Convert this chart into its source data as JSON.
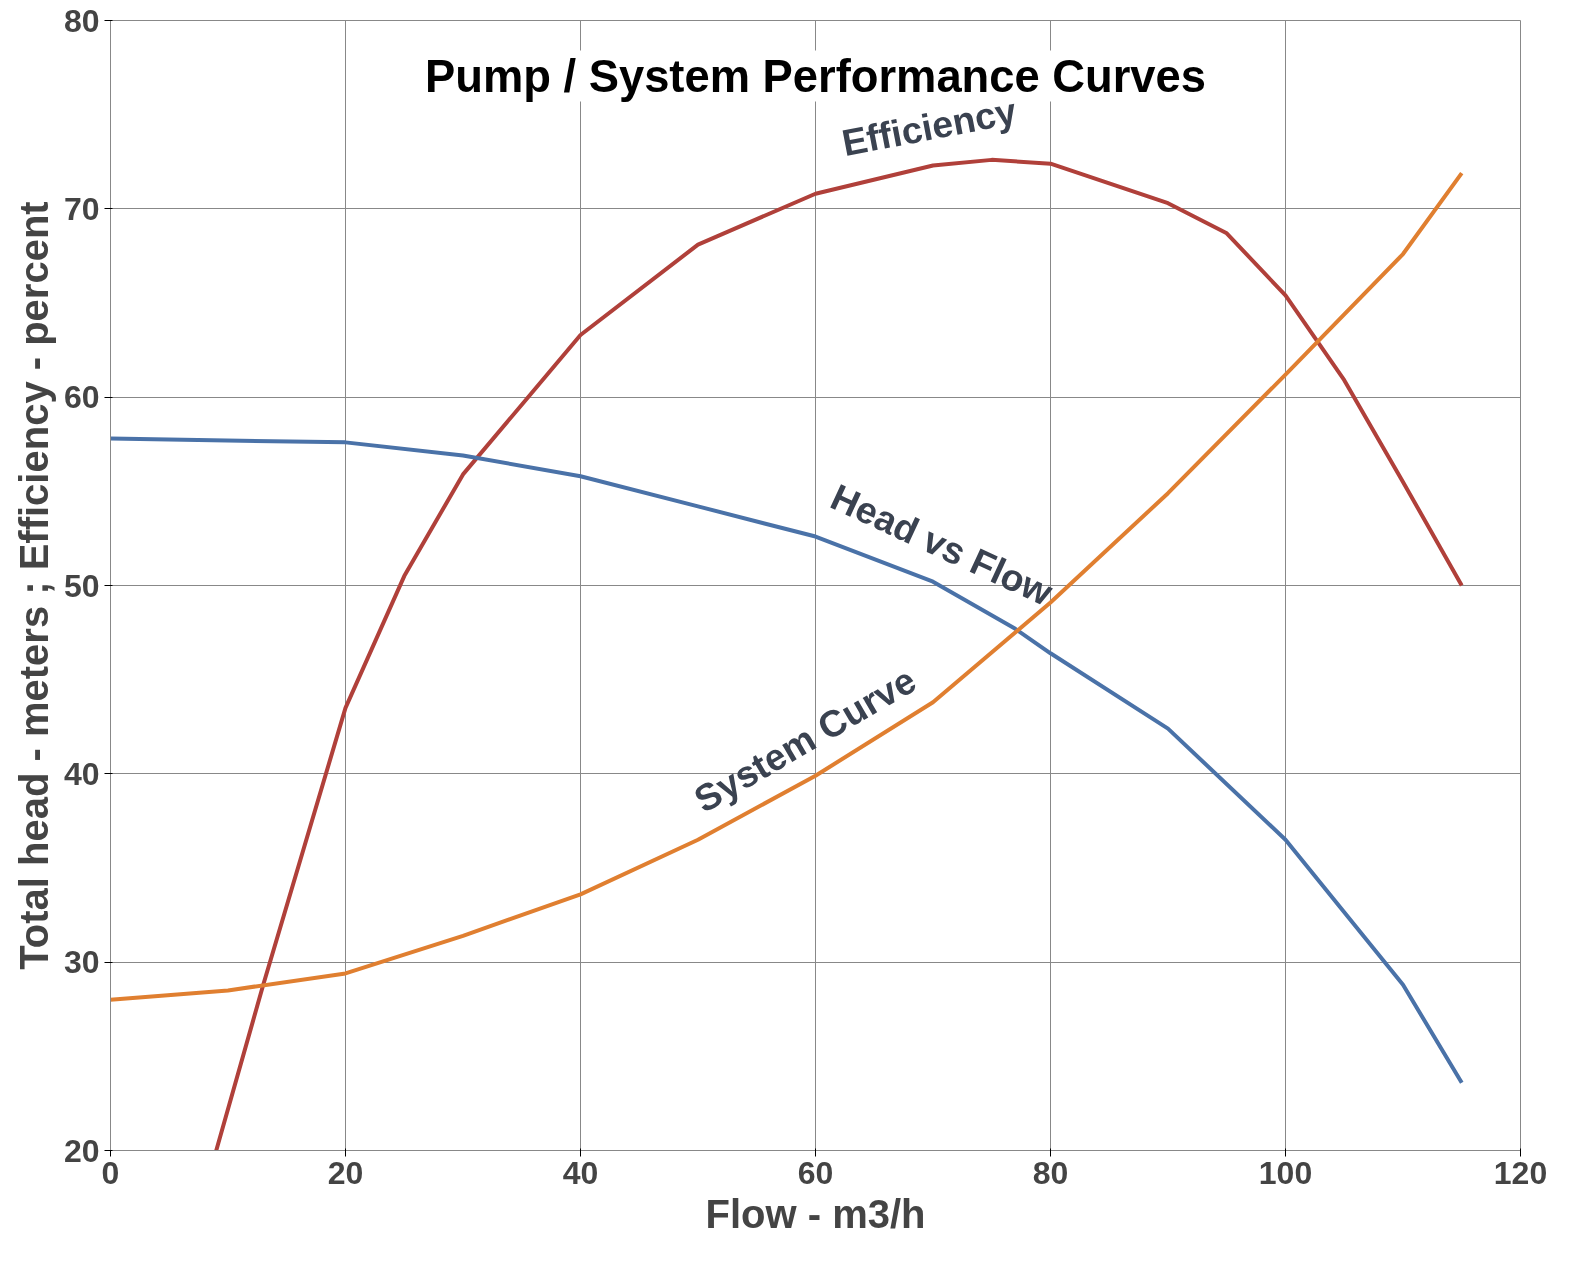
{
  "chart_data": {
    "type": "line",
    "title": "Pump / System Performance Curves",
    "xlabel": "Flow - m3/h",
    "ylabel": "Total head - meters ; Efficiency - percent",
    "xlim": [
      0,
      120
    ],
    "ylim": [
      20,
      80
    ],
    "xticks": [
      0,
      20,
      40,
      60,
      80,
      100,
      120
    ],
    "yticks": [
      20,
      30,
      40,
      50,
      60,
      70,
      80
    ],
    "grid": true,
    "marker": "none",
    "line_style": "solid",
    "series": [
      {
        "name": "Efficiency",
        "color": "#b0403a",
        "x": [
          9,
          13,
          20,
          25,
          30,
          35,
          40,
          50,
          60,
          70,
          75,
          80,
          90,
          95,
          100,
          105,
          110,
          115
        ],
        "values": [
          20,
          28.8,
          43.5,
          50.5,
          55.9,
          59.6,
          63.3,
          68.1,
          70.8,
          72.3,
          72.6,
          72.4,
          70.3,
          68.7,
          65.4,
          60.9,
          55.5,
          50.0
        ]
      },
      {
        "name": "Head vs Flow",
        "color": "#4a72a8",
        "x": [
          0,
          20,
          30,
          40,
          50,
          60,
          70,
          77,
          80,
          90,
          100,
          110,
          115
        ],
        "values": [
          57.8,
          57.6,
          56.9,
          55.8,
          54.2,
          52.6,
          50.2,
          47.7,
          46.4,
          42.4,
          36.5,
          28.8,
          23.6
        ]
      },
      {
        "name": "System Curve",
        "color": "#e07f30",
        "x": [
          0,
          10,
          20,
          30,
          40,
          50,
          60,
          70,
          80,
          90,
          100,
          110,
          115
        ],
        "values": [
          28.0,
          28.5,
          29.4,
          31.4,
          33.6,
          36.5,
          39.9,
          43.8,
          49.1,
          54.9,
          61.2,
          67.6,
          71.9
        ]
      }
    ]
  }
}
